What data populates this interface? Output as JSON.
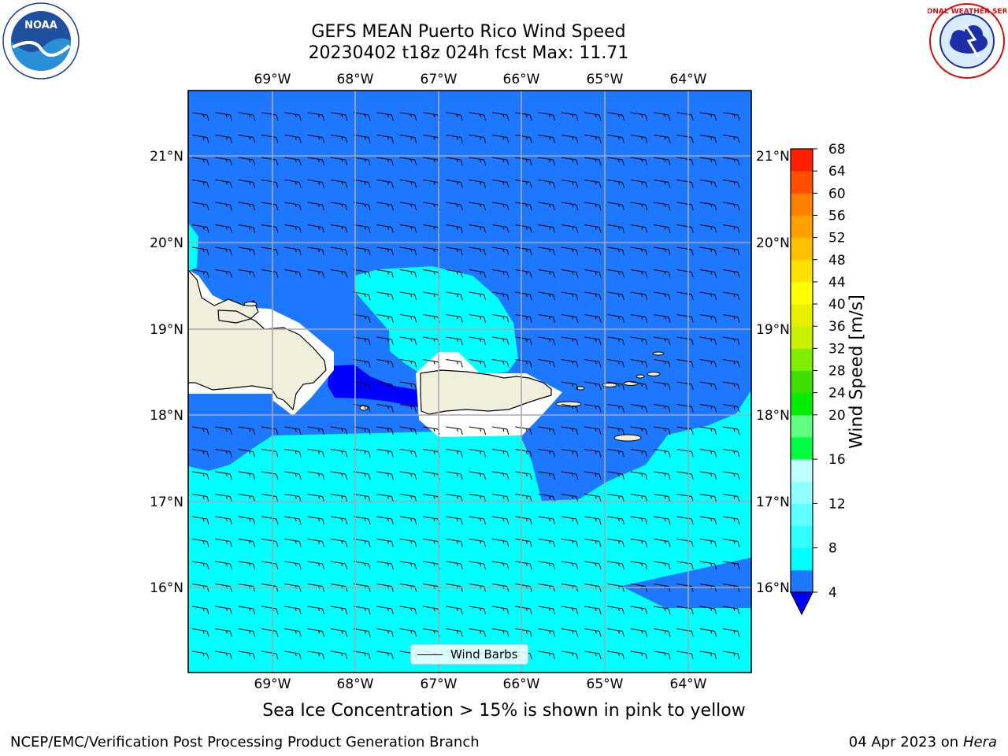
{
  "title": {
    "line1": "GEFS MEAN Puerto Rico Wind Speed",
    "line2": "20230402 t18z 024h fcst   Max: 11.71"
  },
  "map": {
    "lon_ticks": [
      "69°W",
      "68°W",
      "67°W",
      "66°W",
      "65°W",
      "64°W"
    ],
    "lat_ticks": [
      "21°N",
      "20°N",
      "19°N",
      "18°N",
      "17°N",
      "16°N"
    ],
    "lon_range": [
      -70.0,
      -63.25
    ],
    "lat_range": [
      15.0,
      21.75
    ],
    "gridlines": true,
    "wind_barbs": {
      "direction": "easterly",
      "typical_speed": "5-10 kt"
    }
  },
  "legend": {
    "label": "Wind Barbs",
    "placement": "bottom-center"
  },
  "colorbar": {
    "label": "Wind Speed [m/s]",
    "ticks": [
      "68",
      "64",
      "60",
      "56",
      "52",
      "48",
      "44",
      "40",
      "36",
      "32",
      "28",
      "24",
      "20",
      "16",
      "12",
      "8",
      "4"
    ],
    "levels": [
      4,
      6,
      8,
      10,
      12,
      14,
      16,
      18,
      20,
      24,
      28,
      32,
      36,
      40,
      44,
      48,
      52,
      56,
      60,
      64,
      68
    ],
    "colors": [
      "#0000ff",
      "#1e78ff",
      "#00ffff",
      "#30ffff",
      "#60ffff",
      "#90ffff",
      "#c0ffff",
      "#00ff40",
      "#60ff80",
      "#00ee00",
      "#40dd00",
      "#80ee00",
      "#c8f000",
      "#e8f000",
      "#ffff00",
      "#ffe000",
      "#ffc000",
      "#ffa000",
      "#ff8000",
      "#ff5000",
      "#ff2000",
      "#ff0000"
    ],
    "under_color": "#0000ff"
  },
  "field_colors": {
    "band_4_8": "#1e78ff",
    "band_8_12": "#00ffff",
    "band_below_4": "#0000ff",
    "land": "#efefdc"
  },
  "sea_ice_note": "Sea Ice Concentration > 15% is shown in pink to yellow",
  "footer": {
    "left": "NCEP/EMC/Verification Post Processing Product Generation Branch",
    "right_prefix": "04 Apr 2023 on ",
    "right_host": "Hera"
  },
  "logos": {
    "left": "NOAA",
    "right": "NATIONAL WEATHER SERVICE"
  }
}
